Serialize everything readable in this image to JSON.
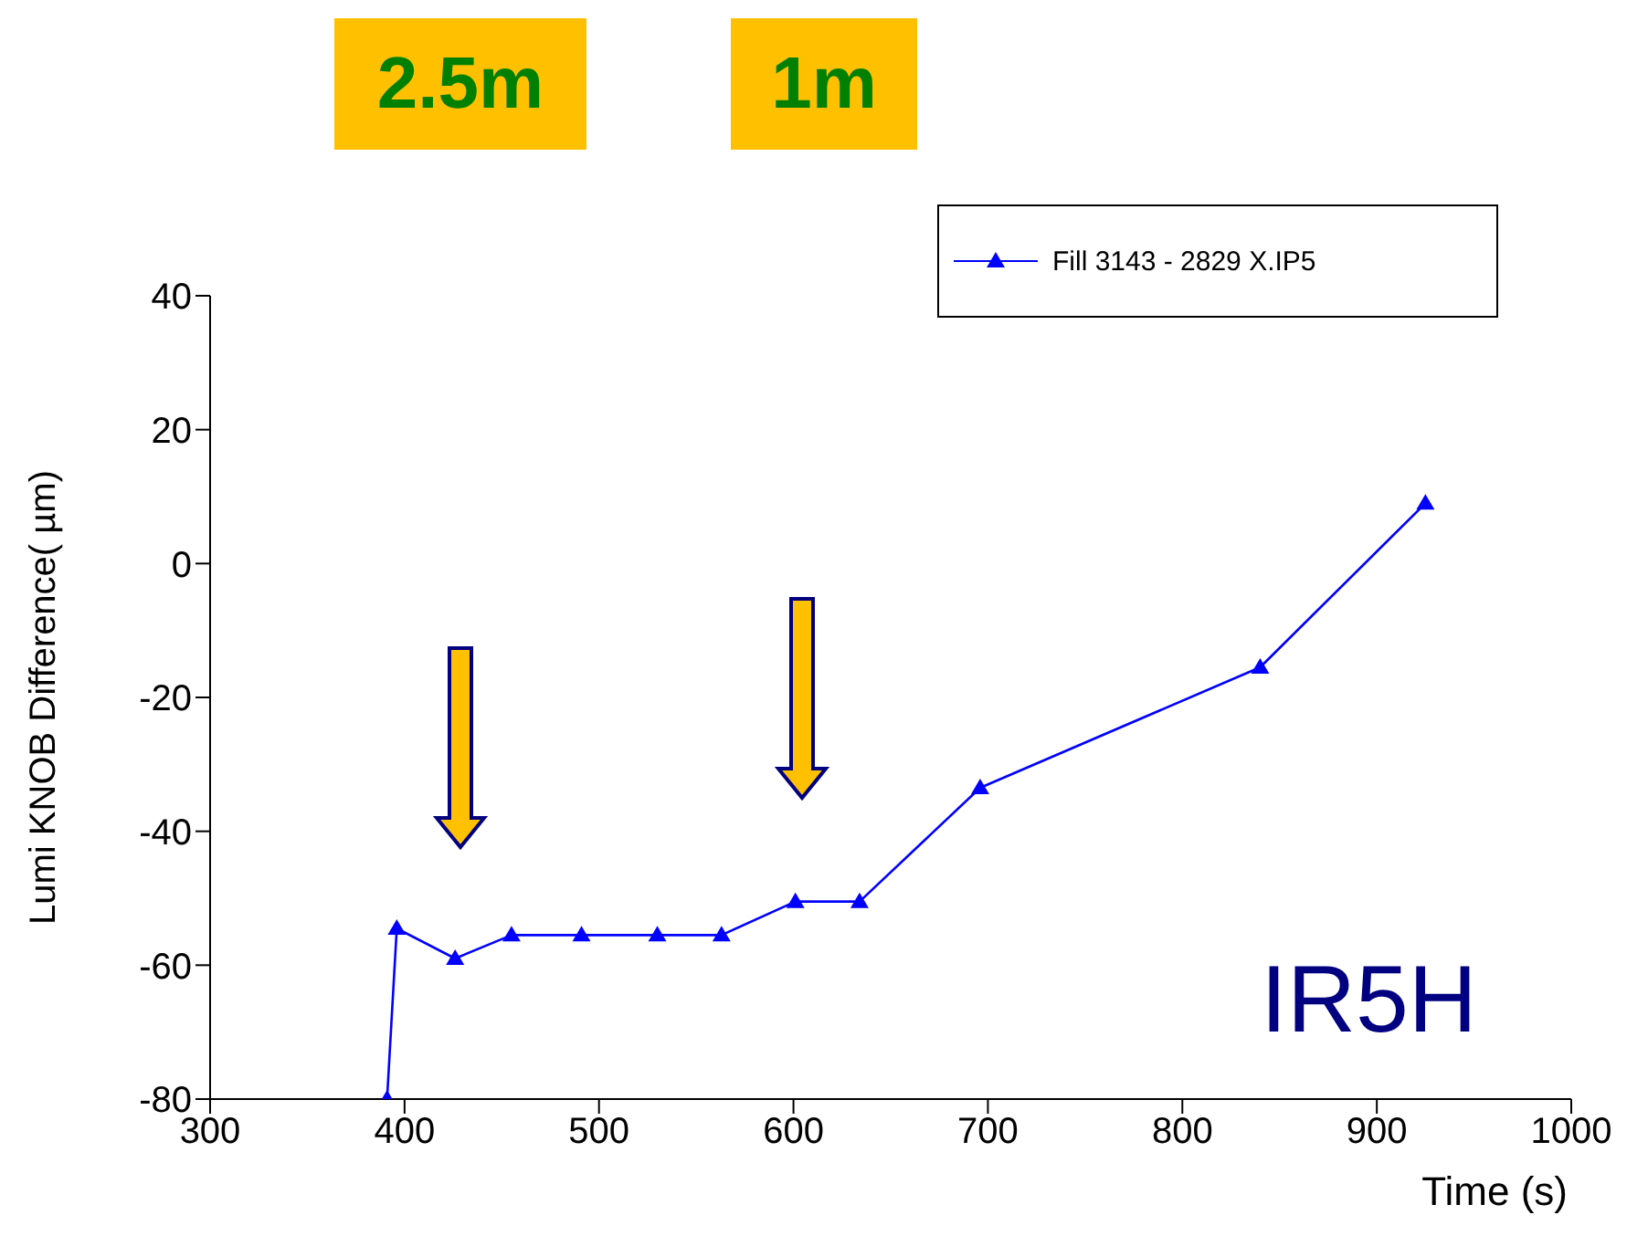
{
  "chart_data": {
    "type": "line",
    "xlabel": "Time (s)",
    "ylabel": "Lumi KNOB Difference( µm)",
    "x": [
      391,
      396,
      426,
      455,
      491,
      530,
      563,
      601,
      634,
      696,
      840,
      925
    ],
    "series": [
      {
        "name": "Fill 3143 - 2829 X.IP5",
        "color": "#0000ff",
        "values": [
          -80,
          -54.5,
          -59,
          -55.5,
          -55.5,
          -55.5,
          -55.5,
          -50.5,
          -50.5,
          -33.5,
          -15.5,
          9
        ]
      }
    ],
    "xlim": [
      300,
      1000
    ],
    "xticks": [
      300,
      400,
      500,
      600,
      700,
      800,
      900,
      1000
    ],
    "ylim": [
      -80,
      40
    ],
    "yticks": [
      -80,
      -60,
      -40,
      -20,
      0,
      20,
      40
    ],
    "grid": false,
    "legend": "top right",
    "marker": "triangle",
    "line_style": "solid",
    "annotations": [
      "2.5m",
      "1m",
      "IR5H"
    ]
  }
}
